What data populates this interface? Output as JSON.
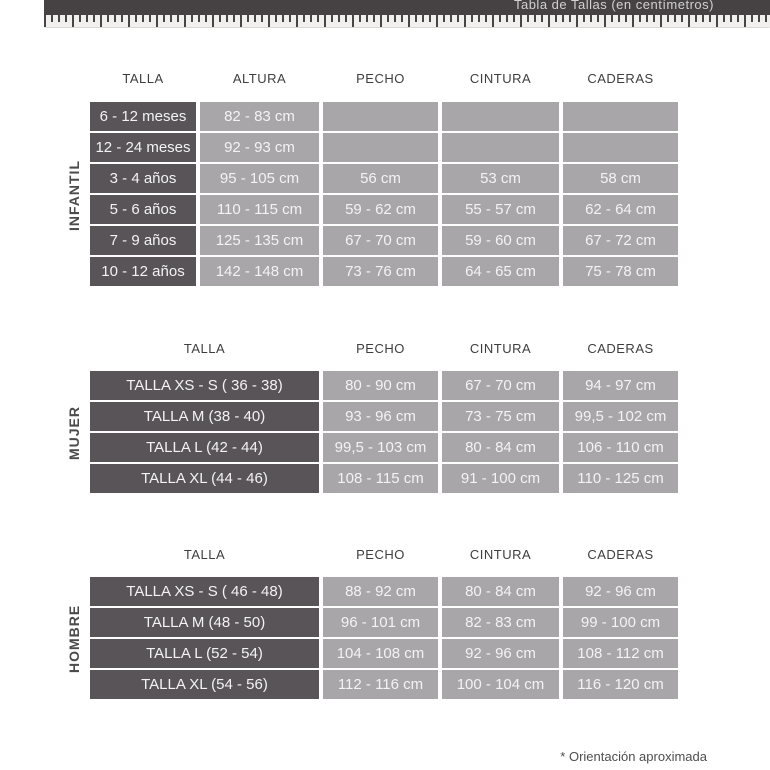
{
  "page": {
    "title": "Tabla de Tallas (en centímetros)",
    "footnote": "* Orientación aproximada"
  },
  "colors": {
    "ruler_bar": "#464244",
    "dark_cell": "#585457",
    "light_cell": "#a8a6a8",
    "cell_text": "#f4f3f4",
    "header_text": "#3e3e3e",
    "label_text": "#4b4b4b"
  },
  "tables": [
    {
      "section": "INFANTIL",
      "headers": [
        "TALLA",
        "ALTURA",
        "PECHO",
        "CINTURA",
        "CADERAS"
      ],
      "rows": [
        [
          "6 - 12 meses",
          "82 - 83 cm",
          "",
          "",
          ""
        ],
        [
          "12 - 24 meses",
          "92 - 93 cm",
          "",
          "",
          ""
        ],
        [
          "3 - 4 años",
          "95 - 105 cm",
          "56 cm",
          "53 cm",
          "58 cm"
        ],
        [
          "5 - 6 años",
          "110 - 115 cm",
          "59 - 62 cm",
          "55 - 57 cm",
          "62 - 64 cm"
        ],
        [
          "7 - 9 años",
          "125 - 135 cm",
          "67 - 70 cm",
          "59 - 60 cm",
          "67 - 72 cm"
        ],
        [
          "10 - 12 años",
          "142 - 148 cm",
          "73 - 76 cm",
          "64 - 65 cm",
          "75 - 78 cm"
        ]
      ]
    },
    {
      "section": "MUJER",
      "headers": [
        "TALLA",
        "PECHO",
        "CINTURA",
        "CADERAS"
      ],
      "rows": [
        [
          "TALLA XS - S ( 36 - 38)",
          "80 - 90 cm",
          "67 - 70 cm",
          "94 - 97 cm"
        ],
        [
          "TALLA M (38 - 40)",
          "93 - 96 cm",
          "73 - 75 cm",
          "99,5 - 102 cm"
        ],
        [
          "TALLA L (42 - 44)",
          "99,5 - 103 cm",
          "80 - 84 cm",
          "106 - 110 cm"
        ],
        [
          "TALLA XL (44 - 46)",
          "108 - 115 cm",
          "91 - 100 cm",
          "110 - 125 cm"
        ]
      ]
    },
    {
      "section": "HOMBRE",
      "headers": [
        "TALLA",
        "PECHO",
        "CINTURA",
        "CADERAS"
      ],
      "rows": [
        [
          "TALLA XS - S ( 46 - 48)",
          "88 - 92 cm",
          "80 - 84 cm",
          "92 - 96 cm"
        ],
        [
          "TALLA M (48 - 50)",
          "96 - 101 cm",
          "82 - 83 cm",
          "99 - 100 cm"
        ],
        [
          "TALLA L (52 - 54)",
          "104 - 108 cm",
          "92 - 96 cm",
          "108 - 112 cm"
        ],
        [
          "TALLA XL (54 - 56)",
          "112 - 116 cm",
          "100 - 104 cm",
          "116 - 120 cm"
        ]
      ]
    }
  ]
}
